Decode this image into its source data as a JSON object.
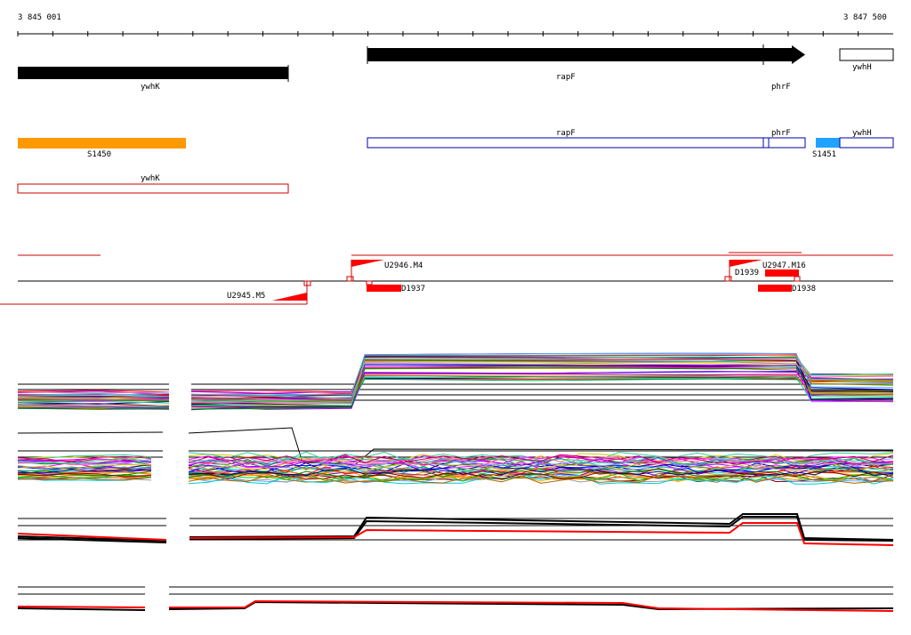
{
  "ruler": {
    "start_label": "3 845 001",
    "end_label": "3 847 500"
  },
  "genes": {
    "ywhK": "ywhK",
    "rapF": "rapF",
    "phrF": "phrF",
    "ywhH": "ywhH"
  },
  "annotations": {
    "S1450": "S1450",
    "S1451": "S1451",
    "rapF": "rapF",
    "phrF": "phrF",
    "ywhH": "ywhH",
    "ywhK": "ywhK"
  },
  "features": {
    "U2946_M4": "U2946.M4",
    "U2947_M16": "U2947.M16",
    "U2945_M5": "U2945.M5",
    "D1937": "D1937",
    "D1938": "D1938",
    "D1939": "D1939"
  },
  "colors": {
    "gene_fill": "#000000",
    "orange_block": "#ff9900",
    "blue_block": "#1fa3ff",
    "blue_outline": "#0000aa",
    "red_outline": "#cc0000",
    "feature_red": "#ff0000"
  }
}
